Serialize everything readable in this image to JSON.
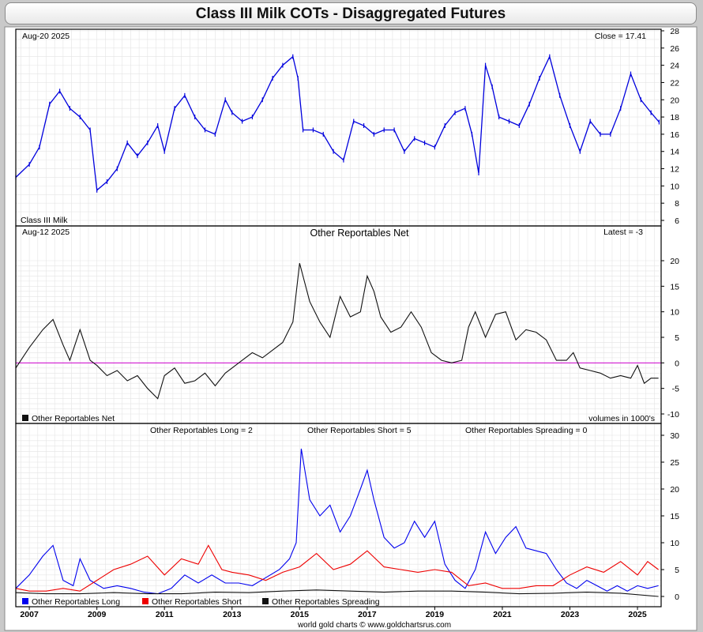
{
  "title": "Class III Milk COTs - Disaggregated Futures",
  "footer": "world gold charts © www.goldchartsrus.com",
  "colors": {
    "price": "#0000dd",
    "net": "#111111",
    "zero_line": "#cc00cc",
    "long": "#0000ee",
    "short": "#ee0000",
    "spreading": "#111111",
    "grid": "#e4e4e4"
  },
  "x_axis": {
    "ticks": [
      "2007",
      "2009",
      "2011",
      "2013",
      "2015",
      "2017",
      "2019",
      "2021",
      "2023",
      "2025"
    ],
    "range": [
      2006.6,
      2025.7
    ]
  },
  "panel1": {
    "date_label": "Aug-20  2025",
    "close_label": "Close = 17.41",
    "name_label": "Class III Milk",
    "y_ticks": [
      "6",
      "8",
      "10",
      "12",
      "14",
      "16",
      "18",
      "20",
      "22",
      "24",
      "26",
      "28"
    ],
    "ylim": [
      6,
      28
    ]
  },
  "panel2": {
    "date_label": "Aug-12  2025",
    "title": "Other Reportables Net",
    "latest_label": "Latest = -3",
    "legend": "Other Reportables Net",
    "units_label": "volumes in 1000's",
    "y_ticks": [
      "-10",
      "-5",
      "0",
      "5",
      "10",
      "15",
      "20"
    ],
    "ylim": [
      -10,
      20
    ]
  },
  "panel3": {
    "long_label": "Other Reportables Long = 2",
    "short_label": "Other Reportables Short = 5",
    "spreading_label": "Other Reportables Spreading = 0",
    "legend": [
      "Other Reportables Long",
      "Other Reportables Short",
      "Other Reportables Spreading"
    ],
    "y_ticks": [
      "0",
      "5",
      "10",
      "15",
      "20",
      "25",
      "30"
    ],
    "ylim": [
      0,
      30
    ]
  },
  "chart_data": [
    {
      "type": "line",
      "title": "Class III Milk",
      "series": [
        {
          "name": "Class III Milk",
          "x": [
            2006.6,
            2007.0,
            2007.3,
            2007.6,
            2007.9,
            2008.2,
            2008.5,
            2008.8,
            2009.0,
            2009.3,
            2009.6,
            2009.9,
            2010.2,
            2010.5,
            2010.8,
            2011.0,
            2011.3,
            2011.6,
            2011.9,
            2012.2,
            2012.5,
            2012.8,
            2013.0,
            2013.3,
            2013.6,
            2013.9,
            2014.2,
            2014.5,
            2014.8,
            2014.95,
            2015.1,
            2015.4,
            2015.7,
            2016.0,
            2016.3,
            2016.6,
            2016.9,
            2017.2,
            2017.5,
            2017.8,
            2018.1,
            2018.4,
            2018.7,
            2019.0,
            2019.3,
            2019.6,
            2019.9,
            2020.1,
            2020.3,
            2020.5,
            2020.7,
            2020.9,
            2021.2,
            2021.5,
            2021.8,
            2022.1,
            2022.4,
            2022.7,
            2023.0,
            2023.3,
            2023.6,
            2023.9,
            2024.2,
            2024.5,
            2024.8,
            2025.1,
            2025.4,
            2025.64
          ],
          "values": [
            11.0,
            12.5,
            14.5,
            19.5,
            21.0,
            19.0,
            18.0,
            16.5,
            9.5,
            10.5,
            12.0,
            15.0,
            13.5,
            15.0,
            17.0,
            14.0,
            19.0,
            20.5,
            18.0,
            16.5,
            16.0,
            20.0,
            18.5,
            17.5,
            18.0,
            20.0,
            22.5,
            24.0,
            25.0,
            22.5,
            16.5,
            16.5,
            16.0,
            14.0,
            13.0,
            17.5,
            17.0,
            16.0,
            16.5,
            16.5,
            14.0,
            15.5,
            15.0,
            14.5,
            17.0,
            18.5,
            19.0,
            16.0,
            11.5,
            24.0,
            21.5,
            18.0,
            17.5,
            17.0,
            19.5,
            22.5,
            25.0,
            20.5,
            17.0,
            14.0,
            17.5,
            16.0,
            16.0,
            19.0,
            23.0,
            20.0,
            18.5,
            17.41
          ]
        }
      ]
    },
    {
      "type": "line",
      "title": "Other Reportables Net",
      "series": [
        {
          "name": "Other Reportables Net",
          "x": [
            2006.6,
            2007.0,
            2007.4,
            2007.7,
            2008.0,
            2008.2,
            2008.5,
            2008.8,
            2009.0,
            2009.3,
            2009.6,
            2009.9,
            2010.2,
            2010.5,
            2010.8,
            2011.0,
            2011.3,
            2011.6,
            2011.9,
            2012.2,
            2012.5,
            2012.8,
            2013.0,
            2013.3,
            2013.6,
            2013.9,
            2014.2,
            2014.5,
            2014.8,
            2015.0,
            2015.3,
            2015.6,
            2015.9,
            2016.2,
            2016.5,
            2016.8,
            2017.0,
            2017.2,
            2017.4,
            2017.7,
            2018.0,
            2018.3,
            2018.6,
            2018.9,
            2019.2,
            2019.5,
            2019.8,
            2020.0,
            2020.2,
            2020.5,
            2020.8,
            2021.1,
            2021.4,
            2021.7,
            2022.0,
            2022.3,
            2022.6,
            2022.9,
            2023.1,
            2023.3,
            2023.6,
            2023.9,
            2024.2,
            2024.5,
            2024.8,
            2025.0,
            2025.2,
            2025.4,
            2025.62
          ],
          "values": [
            -1.0,
            3.0,
            6.5,
            8.5,
            3.5,
            0.5,
            6.5,
            0.5,
            -0.5,
            -2.5,
            -1.5,
            -3.5,
            -2.5,
            -5.0,
            -7.0,
            -2.5,
            -1.0,
            -4.0,
            -3.5,
            -2.0,
            -4.5,
            -2.0,
            -1.0,
            0.5,
            2.0,
            1.0,
            2.5,
            4.0,
            8.0,
            19.5,
            12.0,
            8.0,
            5.0,
            13.0,
            9.0,
            10.0,
            17.0,
            14.0,
            9.0,
            6.0,
            7.0,
            10.0,
            7.0,
            2.0,
            0.5,
            0.0,
            0.5,
            7.0,
            10.0,
            5.0,
            9.5,
            10.0,
            4.5,
            6.5,
            6.0,
            4.5,
            0.5,
            0.5,
            2.0,
            -1.0,
            -1.5,
            -2.0,
            -3.0,
            -2.5,
            -3.0,
            -0.5,
            -4.0,
            -3.0,
            -3.0
          ]
        }
      ]
    },
    {
      "type": "line",
      "title": "",
      "series": [
        {
          "name": "Other Reportables Long",
          "x": [
            2006.6,
            2007.0,
            2007.4,
            2007.7,
            2008.0,
            2008.3,
            2008.5,
            2008.8,
            2009.2,
            2009.6,
            2010.0,
            2010.4,
            2010.8,
            2011.2,
            2011.6,
            2012.0,
            2012.4,
            2012.8,
            2013.2,
            2013.6,
            2014.0,
            2014.4,
            2014.7,
            2014.9,
            2015.05,
            2015.3,
            2015.6,
            2015.9,
            2016.2,
            2016.5,
            2016.8,
            2017.0,
            2017.2,
            2017.5,
            2017.8,
            2018.1,
            2018.4,
            2018.7,
            2019.0,
            2019.3,
            2019.6,
            2019.9,
            2020.2,
            2020.5,
            2020.8,
            2021.1,
            2021.4,
            2021.7,
            2022.0,
            2022.3,
            2022.6,
            2022.9,
            2023.2,
            2023.5,
            2023.8,
            2024.1,
            2024.4,
            2024.7,
            2025.0,
            2025.3,
            2025.62
          ],
          "values": [
            1.5,
            4.0,
            7.5,
            9.5,
            3.0,
            2.0,
            7.0,
            3.0,
            1.5,
            2.0,
            1.5,
            0.8,
            0.5,
            1.5,
            4.0,
            2.5,
            4.0,
            2.5,
            2.5,
            2.0,
            3.5,
            5.0,
            7.0,
            10.0,
            27.5,
            18.0,
            15.0,
            17.0,
            12.0,
            15.0,
            20.0,
            23.5,
            18.0,
            11.0,
            9.0,
            10.0,
            14.0,
            11.0,
            14.0,
            6.0,
            3.0,
            1.5,
            5.0,
            12.0,
            8.0,
            11.0,
            13.0,
            9.0,
            8.5,
            8.0,
            5.0,
            2.5,
            1.5,
            3.0,
            2.0,
            1.0,
            2.0,
            1.0,
            2.0,
            1.5,
            2.0
          ]
        },
        {
          "name": "Other Reportables Short",
          "x": [
            2006.6,
            2007.0,
            2007.5,
            2008.0,
            2008.5,
            2009.0,
            2009.5,
            2010.0,
            2010.5,
            2011.0,
            2011.5,
            2012.0,
            2012.3,
            2012.7,
            2013.0,
            2013.5,
            2014.0,
            2014.5,
            2015.0,
            2015.5,
            2016.0,
            2016.5,
            2017.0,
            2017.5,
            2018.0,
            2018.5,
            2019.0,
            2019.5,
            2020.0,
            2020.5,
            2021.0,
            2021.5,
            2022.0,
            2022.5,
            2023.0,
            2023.5,
            2024.0,
            2024.5,
            2025.0,
            2025.3,
            2025.62
          ],
          "values": [
            1.5,
            1.0,
            1.0,
            1.5,
            1.0,
            3.0,
            5.0,
            6.0,
            7.5,
            4.0,
            7.0,
            6.0,
            9.5,
            5.0,
            4.5,
            4.0,
            3.0,
            4.5,
            5.5,
            8.0,
            5.0,
            6.0,
            8.5,
            5.5,
            5.0,
            4.5,
            5.0,
            4.5,
            2.0,
            2.5,
            1.5,
            1.5,
            2.0,
            2.0,
            4.0,
            5.5,
            4.5,
            6.5,
            4.0,
            6.5,
            5.0
          ]
        },
        {
          "name": "Other Reportables Spreading",
          "x": [
            2006.6,
            2007.5,
            2008.5,
            2009.5,
            2010.5,
            2011.5,
            2012.5,
            2013.5,
            2014.5,
            2015.5,
            2016.5,
            2017.5,
            2018.5,
            2019.5,
            2020.5,
            2021.5,
            2022.5,
            2023.5,
            2024.5,
            2025.62
          ],
          "values": [
            0.7,
            0.5,
            0.5,
            0.7,
            0.5,
            0.5,
            0.8,
            0.7,
            1.0,
            1.2,
            1.0,
            0.8,
            1.0,
            1.0,
            0.8,
            0.5,
            0.6,
            0.8,
            0.6,
            0.0
          ]
        }
      ]
    }
  ]
}
